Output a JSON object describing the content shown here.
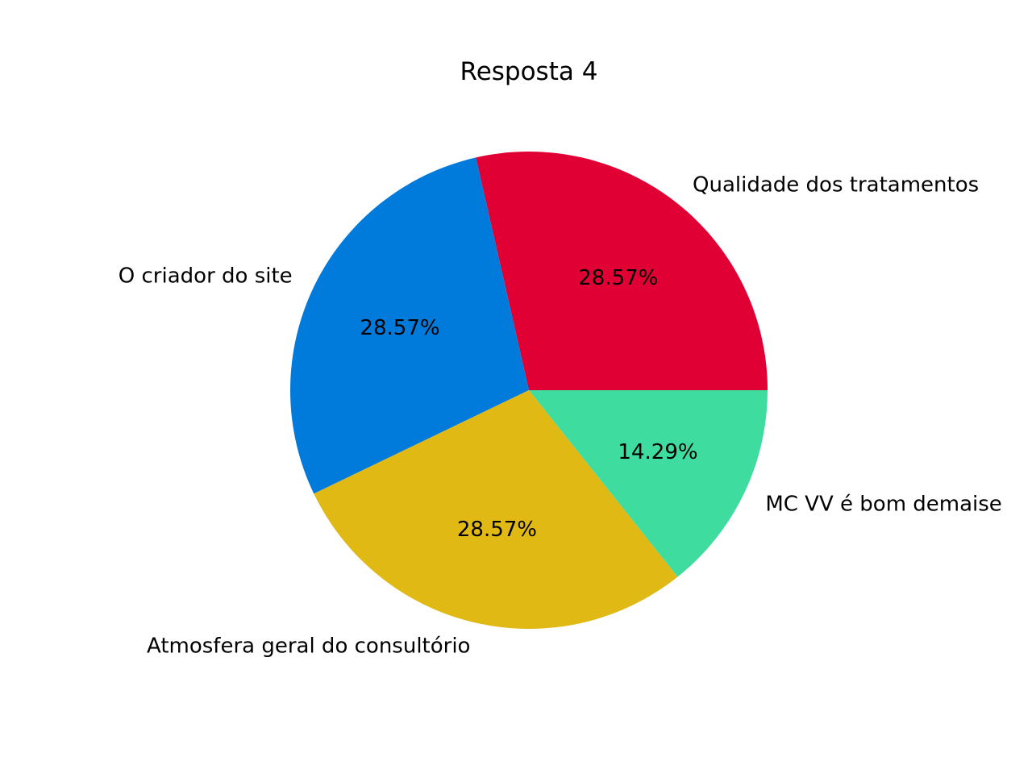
{
  "chart_data": {
    "type": "pie",
    "title": "Resposta 4",
    "slices": [
      {
        "label": "Qualidade dos tratamentos",
        "value": 28.57,
        "pct_label": "28.57%",
        "color": "#e00033"
      },
      {
        "label": "O criador do site",
        "value": 28.57,
        "pct_label": "28.57%",
        "color": "#007bdb"
      },
      {
        "label": "Atmosfera geral do consultório",
        "value": 28.57,
        "pct_label": "28.57%",
        "color": "#e1b914"
      },
      {
        "label": "MC VV é bom demaise",
        "value": 14.29,
        "pct_label": "14.29%",
        "color": "#3fdc9f"
      }
    ]
  }
}
